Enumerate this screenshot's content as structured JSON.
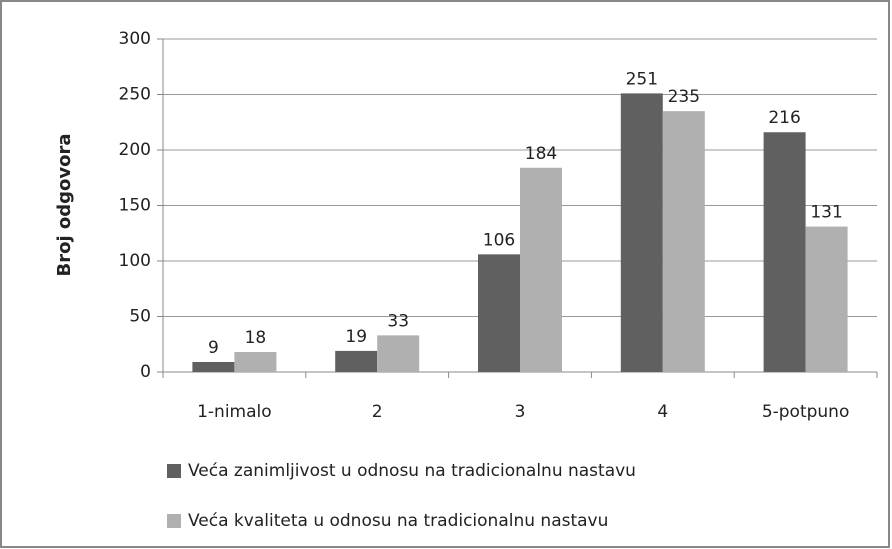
{
  "chart_data": {
    "type": "bar",
    "y_label": "Broj odgovora",
    "categories": [
      "1-nimalo",
      "2",
      "3",
      "4",
      "5-potpuno"
    ],
    "series": [
      {
        "name": "Veća zanimljivost u odnosu na tradicionalnu nastavu",
        "color": "#606060",
        "values": [
          9,
          19,
          106,
          251,
          216
        ]
      },
      {
        "name": "Veća kvaliteta u odnosu na tradicionalnu nastavu",
        "color": "#b0b0b0",
        "values": [
          18,
          33,
          184,
          235,
          131
        ]
      }
    ],
    "ylim": [
      0,
      300
    ],
    "yticks": [
      0,
      50,
      100,
      150,
      200,
      250,
      300
    ],
    "grid": true,
    "legend": "bottom"
  }
}
